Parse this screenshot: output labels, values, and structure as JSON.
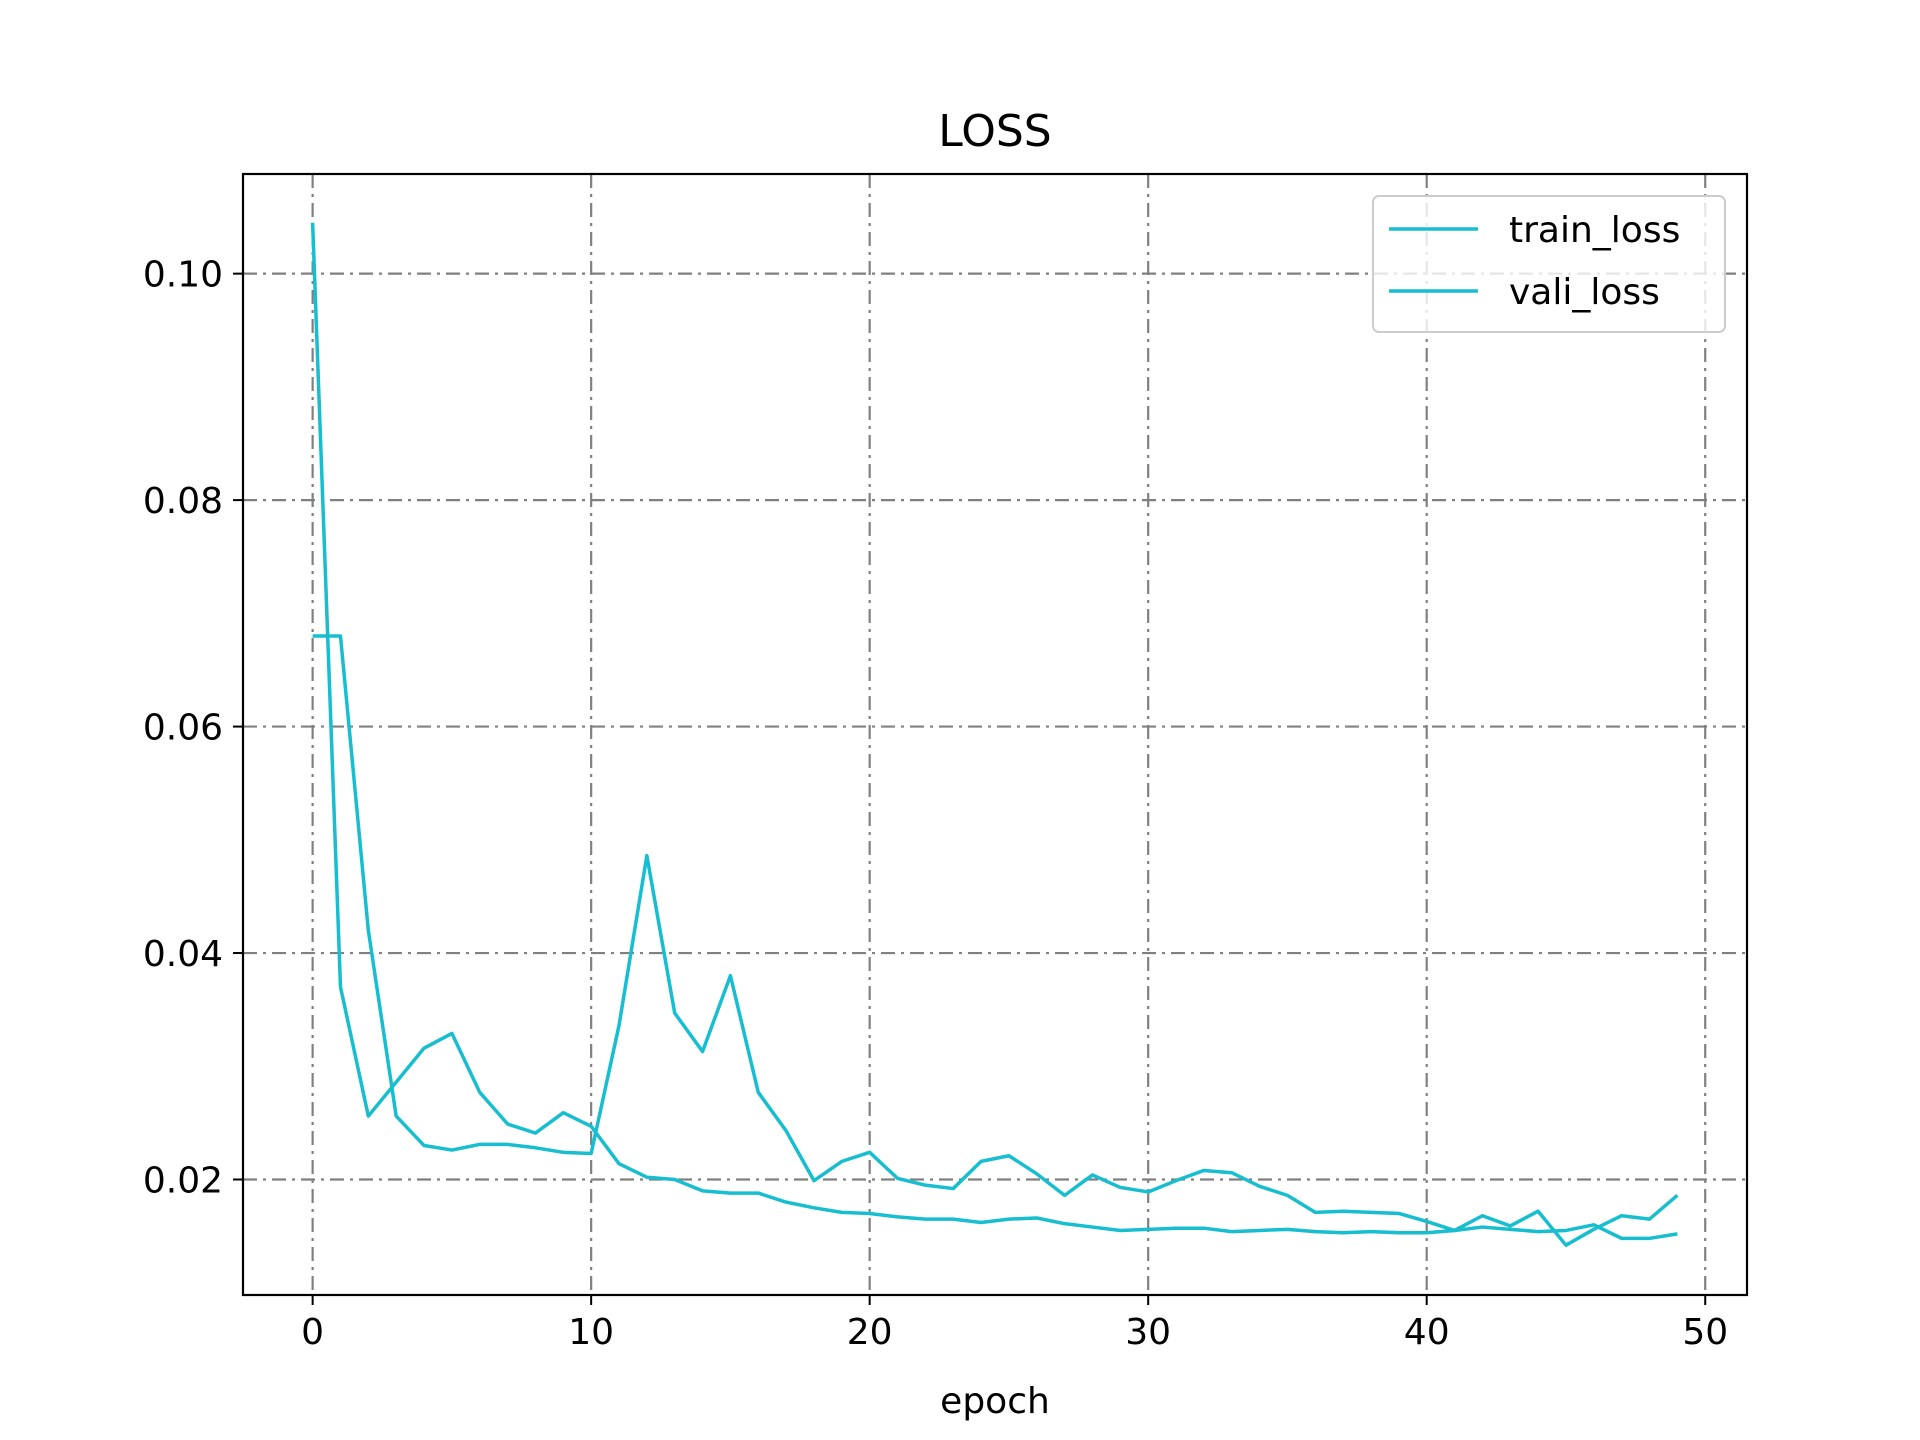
{
  "chart_data": {
    "type": "line",
    "title": "LOSS",
    "xlabel": "epoch",
    "ylabel": "",
    "xlim": [
      -2.5,
      51.5
    ],
    "ylim": [
      0.0098,
      0.1088
    ],
    "x_ticks": [
      0,
      10,
      20,
      30,
      40,
      50
    ],
    "x_tick_labels": [
      "0",
      "10",
      "20",
      "30",
      "40",
      "50"
    ],
    "y_ticks": [
      0.02,
      0.04,
      0.06,
      0.08,
      0.1
    ],
    "y_tick_labels": [
      "0.02",
      "0.04",
      "0.06",
      "0.08",
      "0.10"
    ],
    "grid": true,
    "legend_position": "top-right",
    "x": [
      0,
      1,
      2,
      3,
      4,
      5,
      6,
      7,
      8,
      9,
      10,
      11,
      12,
      13,
      14,
      15,
      16,
      17,
      18,
      19,
      20,
      21,
      22,
      23,
      24,
      25,
      26,
      27,
      28,
      29,
      30,
      31,
      32,
      33,
      34,
      35,
      36,
      37,
      38,
      39,
      40,
      41,
      42,
      43,
      44,
      45,
      46,
      47,
      48,
      49
    ],
    "series": [
      {
        "name": "train_loss",
        "color": "#17becf",
        "values": [
          0.1045,
          0.037,
          0.0256,
          0.0286,
          0.0316,
          0.0329,
          0.0277,
          0.0249,
          0.0241,
          0.0259,
          0.0247,
          0.0214,
          0.0202,
          0.02,
          0.019,
          0.0188,
          0.0188,
          0.018,
          0.0175,
          0.0171,
          0.017,
          0.0167,
          0.0165,
          0.0165,
          0.0162,
          0.0165,
          0.0166,
          0.0161,
          0.0158,
          0.0155,
          0.0156,
          0.0157,
          0.0157,
          0.0154,
          0.0155,
          0.0156,
          0.0154,
          0.0153,
          0.0154,
          0.0153,
          0.0153,
          0.0155,
          0.0158,
          0.0156,
          0.0154,
          0.0155,
          0.016,
          0.0148,
          0.0148,
          0.0152
        ]
      },
      {
        "name": "vali_loss",
        "color": "#17becf",
        "values": [
          0.068,
          0.068,
          0.042,
          0.0256,
          0.023,
          0.0226,
          0.0231,
          0.0231,
          0.0228,
          0.0224,
          0.0223,
          0.0336,
          0.0486,
          0.0347,
          0.0313,
          0.038,
          0.0277,
          0.0243,
          0.0199,
          0.0216,
          0.0224,
          0.0201,
          0.0195,
          0.0192,
          0.0216,
          0.0221,
          0.0205,
          0.0186,
          0.0204,
          0.0193,
          0.0189,
          0.0199,
          0.0208,
          0.0206,
          0.0194,
          0.0186,
          0.0171,
          0.0172,
          0.0171,
          0.017,
          0.0163,
          0.0155,
          0.0168,
          0.0159,
          0.0172,
          0.0142,
          0.0156,
          0.0168,
          0.0165,
          0.0186
        ]
      }
    ]
  }
}
